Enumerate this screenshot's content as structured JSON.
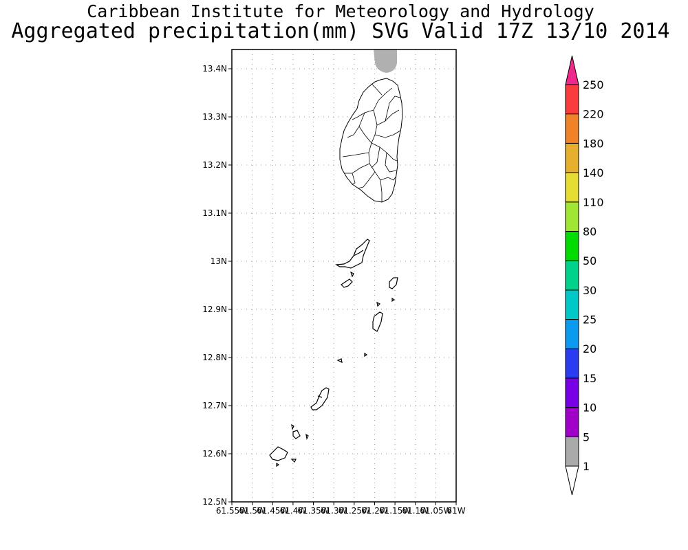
{
  "title": "Caribbean Institute for Meteorology and Hydrology",
  "subtitle": "Aggregated precipitation(mm) SVG Valid 17Z 13/10 2014",
  "map": {
    "lat_ticks": [
      "13.4N",
      "13.3N",
      "13.2N",
      "13.1N",
      "13N",
      "12.9N",
      "12.8N",
      "12.7N",
      "12.6N",
      "12.5N"
    ],
    "lon_ticks": [
      "61.55W",
      "61.5W",
      "61.45W",
      "61.4W",
      "61.35W",
      "61.3W",
      "61.25W",
      "61.2W",
      "61.15W",
      "61.1W",
      "61.05W",
      "61W"
    ],
    "lat_range": [
      12.5,
      13.44
    ],
    "lon_range": [
      -61.55,
      -61.0
    ],
    "rain_patch_color": "#b0b0b0",
    "grid": "dotted"
  },
  "colorbar": {
    "labels": [
      "1",
      "5",
      "10",
      "15",
      "20",
      "25",
      "30",
      "50",
      "80",
      "110",
      "140",
      "180",
      "220",
      "250"
    ],
    "colors": [
      "#aaaaaa",
      "#a000c8",
      "#7800e6",
      "#2a3cf0",
      "#0a9bf0",
      "#00c8c8",
      "#00d28c",
      "#00dc00",
      "#a0e632",
      "#e6dc32",
      "#e6af2d",
      "#f08228",
      "#fa3c3c",
      "#f0288c"
    ]
  }
}
